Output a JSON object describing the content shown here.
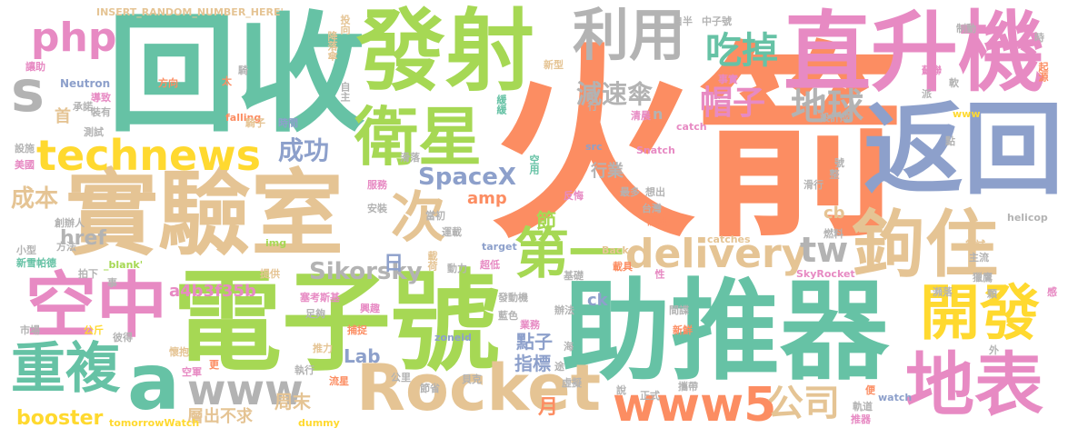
{
  "colors": {
    "orange": "#fc8d62",
    "green": "#66c2a5",
    "lime": "#a6d854",
    "pink": "#e78ac3",
    "blue": "#8da0cb",
    "tan": "#e5c494",
    "gray": "#b3b3b3",
    "yellow": "#ffd92f"
  },
  "words": [
    {
      "text": "火箭",
      "color": "orange"
    },
    {
      "text": "回收",
      "color": "green"
    },
    {
      "text": "電子號",
      "color": "lime"
    },
    {
      "text": "助推器",
      "color": "green"
    },
    {
      "text": "發射",
      "color": "lime"
    },
    {
      "text": "實驗室",
      "color": "tan"
    },
    {
      "text": "直升機",
      "color": "pink"
    },
    {
      "text": "返回",
      "color": "blue"
    },
    {
      "text": "空中",
      "color": "pink"
    },
    {
      "text": "利用",
      "color": "gray"
    },
    {
      "text": "衛星",
      "color": "lime"
    },
    {
      "text": "鉤住",
      "color": "tan"
    },
    {
      "text": "地表",
      "color": "pink"
    },
    {
      "text": "開發",
      "color": "yellow"
    },
    {
      "text": "Rocket",
      "color": "tan"
    },
    {
      "text": "第一",
      "color": "lime"
    },
    {
      "text": "次",
      "color": "tan"
    },
    {
      "text": "technews",
      "color": "yellow"
    },
    {
      "text": "重複",
      "color": "green"
    },
    {
      "text": "www5",
      "color": "orange"
    },
    {
      "text": "a",
      "color": "green"
    },
    {
      "text": "www",
      "color": "gray"
    },
    {
      "text": "php",
      "color": "pink"
    },
    {
      "text": "s",
      "color": "gray"
    },
    {
      "text": "吃掉",
      "color": "green"
    },
    {
      "text": "地球",
      "color": "gray"
    },
    {
      "text": "帽子",
      "color": "pink"
    },
    {
      "text": "delivery",
      "color": "tan"
    },
    {
      "text": "tw",
      "color": "gray"
    },
    {
      "text": "公司",
      "color": "tan"
    },
    {
      "text": "減速傘",
      "color": "gray"
    },
    {
      "text": "成功",
      "color": "blue"
    },
    {
      "text": "SpaceX",
      "color": "blue"
    },
    {
      "text": "Sikorsky",
      "color": "gray"
    },
    {
      "text": "成本",
      "color": "tan"
    },
    {
      "text": "booster",
      "color": "yellow"
    },
    {
      "text": "href",
      "color": "gray"
    },
    {
      "text": "a4b3f35b",
      "color": "pink"
    },
    {
      "text": "Lab",
      "color": "blue"
    },
    {
      "text": "節",
      "color": "lime"
    },
    {
      "text": "日",
      "color": "blue"
    },
    {
      "text": "月",
      "color": "orange"
    },
    {
      "text": "周末",
      "color": "tan"
    },
    {
      "text": "點子",
      "color": "blue"
    },
    {
      "text": "指標",
      "color": "blue"
    },
    {
      "text": "行業",
      "color": "gray"
    },
    {
      "text": "層出不求",
      "color": "tan"
    },
    {
      "text": "cb",
      "color": "tan"
    },
    {
      "text": "amp",
      "color": "orange"
    },
    {
      "text": "ck",
      "color": "blue"
    },
    {
      "text": "首",
      "color": "tan"
    },
    {
      "text": "n",
      "color": "gray"
    },
    {
      "text": "INSERT_RANDOM_NUMBER_HERE'",
      "color": "tan"
    },
    {
      "text": "Neutron",
      "color": "blue"
    },
    {
      "text": "tomorrowWatch",
      "color": "yellow"
    },
    {
      "text": "dummy",
      "color": "yellow"
    },
    {
      "text": "catches",
      "color": "tan"
    },
    {
      "text": "falling",
      "color": "orange"
    },
    {
      "text": "catch",
      "color": "pink"
    },
    {
      "text": "Snatch",
      "color": "pink"
    },
    {
      "text": "Back",
      "color": "tan"
    },
    {
      "text": "SkyRocket",
      "color": "pink"
    },
    {
      "text": "helicop",
      "color": "gray"
    },
    {
      "text": "target",
      "color": "blue"
    },
    {
      "text": "watch",
      "color": "blue"
    },
    {
      "text": "zoneid",
      "color": "blue"
    },
    {
      "text": "img",
      "color": "lime"
    },
    {
      "text": "src",
      "color": "blue"
    },
    {
      "text": "_blank'",
      "color": "lime"
    },
    {
      "text": "www",
      "color": "yellow"
    },
    {
      "text": "自半",
      "color": "gray"
    },
    {
      "text": "投向",
      "color": "tan"
    },
    {
      "text": "降落傘",
      "color": "tan"
    },
    {
      "text": "太",
      "color": "orange"
    },
    {
      "text": "方向",
      "color": "orange"
    },
    {
      "text": "時間",
      "color": "blue"
    },
    {
      "text": "自主",
      "color": "gray"
    },
    {
      "text": "緩緩",
      "color": "green"
    },
    {
      "text": "中子號",
      "color": "gray"
    },
    {
      "text": "新型",
      "color": "tan"
    },
    {
      "text": "事實",
      "color": "pink"
    },
    {
      "text": "制動",
      "color": "gray"
    },
    {
      "text": "起源",
      "color": "orange"
    },
    {
      "text": "蘇聯",
      "color": "pink"
    },
    {
      "text": "軟",
      "color": "gray"
    },
    {
      "text": "派",
      "color": "gray"
    },
    {
      "text": "讓助",
      "color": "pink"
    },
    {
      "text": "導致",
      "color": "pink"
    },
    {
      "text": "承諾",
      "color": "gray"
    },
    {
      "text": "裝有",
      "color": "gray"
    },
    {
      "text": "測試",
      "color": "gray"
    },
    {
      "text": "設施",
      "color": "gray"
    },
    {
      "text": "美國",
      "color": "pink"
    },
    {
      "text": "飛行",
      "color": "gray"
    },
    {
      "text": "清晨",
      "color": "pink"
    },
    {
      "text": "設計成",
      "color": "gray"
    },
    {
      "text": "滑落",
      "color": "gray"
    },
    {
      "text": "服務",
      "color": "pink"
    },
    {
      "text": "安裝",
      "color": "gray"
    },
    {
      "text": "當初",
      "color": "gray"
    },
    {
      "text": "空用",
      "color": "green"
    },
    {
      "text": "反悔",
      "color": "pink"
    },
    {
      "text": "最多",
      "color": "gray"
    },
    {
      "text": "想出",
      "color": "gray"
    },
    {
      "text": "台灣",
      "color": "gray"
    },
    {
      "text": "關鍵",
      "color": "orange"
    },
    {
      "text": "滑行",
      "color": "gray"
    },
    {
      "text": "整",
      "color": "gray"
    },
    {
      "text": "創辦人",
      "color": "gray"
    },
    {
      "text": "方法",
      "color": "gray"
    },
    {
      "text": "小型",
      "color": "gray"
    },
    {
      "text": "新雪帕德",
      "color": "green"
    },
    {
      "text": "運載",
      "color": "gray"
    },
    {
      "text": "動力",
      "color": "gray"
    },
    {
      "text": "超低",
      "color": "pink"
    },
    {
      "text": "載荷",
      "color": "tan"
    },
    {
      "text": "載具",
      "color": "orange"
    },
    {
      "text": "燃料",
      "color": "gray"
    },
    {
      "text": "嘗試",
      "color": "tan"
    },
    {
      "text": "主流",
      "color": "gray"
    },
    {
      "text": "獵鷹",
      "color": "gray"
    },
    {
      "text": "提供",
      "color": "tan"
    },
    {
      "text": "拍下",
      "color": "gray"
    },
    {
      "text": "發動機",
      "color": "gray"
    },
    {
      "text": "基礎",
      "color": "gray"
    },
    {
      "text": "性",
      "color": "pink"
    },
    {
      "text": "間諜",
      "color": "gray"
    },
    {
      "text": "塞考斯基",
      "color": "pink"
    },
    {
      "text": "足夠",
      "color": "gray"
    },
    {
      "text": "興趣",
      "color": "pink"
    },
    {
      "text": "藍色",
      "color": "gray"
    },
    {
      "text": "業務",
      "color": "pink"
    },
    {
      "text": "辦法",
      "color": "gray"
    },
    {
      "text": "新鮮",
      "color": "orange"
    },
    {
      "text": "市場",
      "color": "gray"
    },
    {
      "text": "公斤",
      "color": "yellow"
    },
    {
      "text": "彼得",
      "color": "gray"
    },
    {
      "text": "推力",
      "color": "tan"
    },
    {
      "text": "捕捉",
      "color": "orange"
    },
    {
      "text": "執行",
      "color": "gray"
    },
    {
      "text": "懷抱",
      "color": "tan"
    },
    {
      "text": "更",
      "color": "orange"
    },
    {
      "text": "空軍",
      "color": "pink"
    },
    {
      "text": "流星",
      "color": "orange"
    },
    {
      "text": "公里",
      "color": "gray"
    },
    {
      "text": "節省",
      "color": "gray"
    },
    {
      "text": "貝克",
      "color": "gray"
    },
    {
      "text": "虛擬",
      "color": "gray"
    },
    {
      "text": "說",
      "color": "gray"
    },
    {
      "text": "正式",
      "color": "gray"
    },
    {
      "text": "攜帶",
      "color": "gray"
    },
    {
      "text": "軌道",
      "color": "gray"
    },
    {
      "text": "推器",
      "color": "pink"
    },
    {
      "text": "便",
      "color": "orange"
    },
    {
      "text": "外",
      "color": "gray"
    },
    {
      "text": "感",
      "color": "pink"
    },
    {
      "text": "顆",
      "color": "gray"
    },
    {
      "text": "騎",
      "color": "gray"
    },
    {
      "text": "事",
      "color": "gray"
    },
    {
      "text": "途",
      "color": "gray"
    },
    {
      "text": "海",
      "color": "gray"
    },
    {
      "text": "瀕落",
      "color": "gray"
    },
    {
      "text": "號",
      "color": "gray"
    },
    {
      "text": "點",
      "color": "gray"
    },
    {
      "text": "時",
      "color": "gray"
    },
    {
      "text": "騎子",
      "color": "tan"
    }
  ]
}
